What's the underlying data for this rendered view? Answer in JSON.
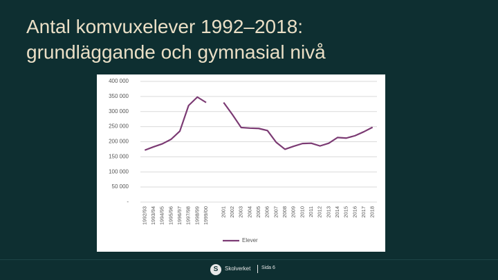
{
  "chart_data": {
    "type": "line",
    "title": "Antal komvuxelever 1992–2018: grundläggande och gymnasial nivå",
    "categories": [
      "1992/93",
      "1993/94",
      "1994/95",
      "1995/96",
      "1996/97",
      "1997/98",
      "1998/99",
      "1999/00",
      null,
      "2001",
      "2002",
      "2003",
      "2004",
      "2005",
      "2006",
      "2007",
      "2008",
      "2009",
      "2010",
      "2011",
      "2012",
      "2013",
      "2014",
      "2015",
      "2016",
      "2017",
      "2018"
    ],
    "series": [
      {
        "name": "Elever",
        "color": "#7b3a73",
        "values": [
          172000,
          183000,
          193000,
          208000,
          235000,
          320000,
          348000,
          330000,
          null,
          330000,
          290000,
          247000,
          245000,
          244000,
          237000,
          198000,
          175000,
          185000,
          194000,
          195000,
          186000,
          195000,
          214000,
          212000,
          220000,
          233000,
          248000
        ]
      }
    ],
    "ylim": [
      0,
      400000
    ],
    "yticks": [
      {
        "value": 0,
        "label": "-"
      },
      {
        "value": 50000,
        "label": "50 000"
      },
      {
        "value": 100000,
        "label": "100 000"
      },
      {
        "value": 150000,
        "label": "150 000"
      },
      {
        "value": 200000,
        "label": "200 000"
      },
      {
        "value": 250000,
        "label": "250 000"
      },
      {
        "value": 300000,
        "label": "300 000"
      },
      {
        "value": 350000,
        "label": "350 000"
      },
      {
        "value": 400000,
        "label": "400 000"
      }
    ],
    "grid": true,
    "legend": "bottom"
  },
  "footer": {
    "logo": "S",
    "organization": "Skolverket",
    "page": "Sida 6"
  }
}
